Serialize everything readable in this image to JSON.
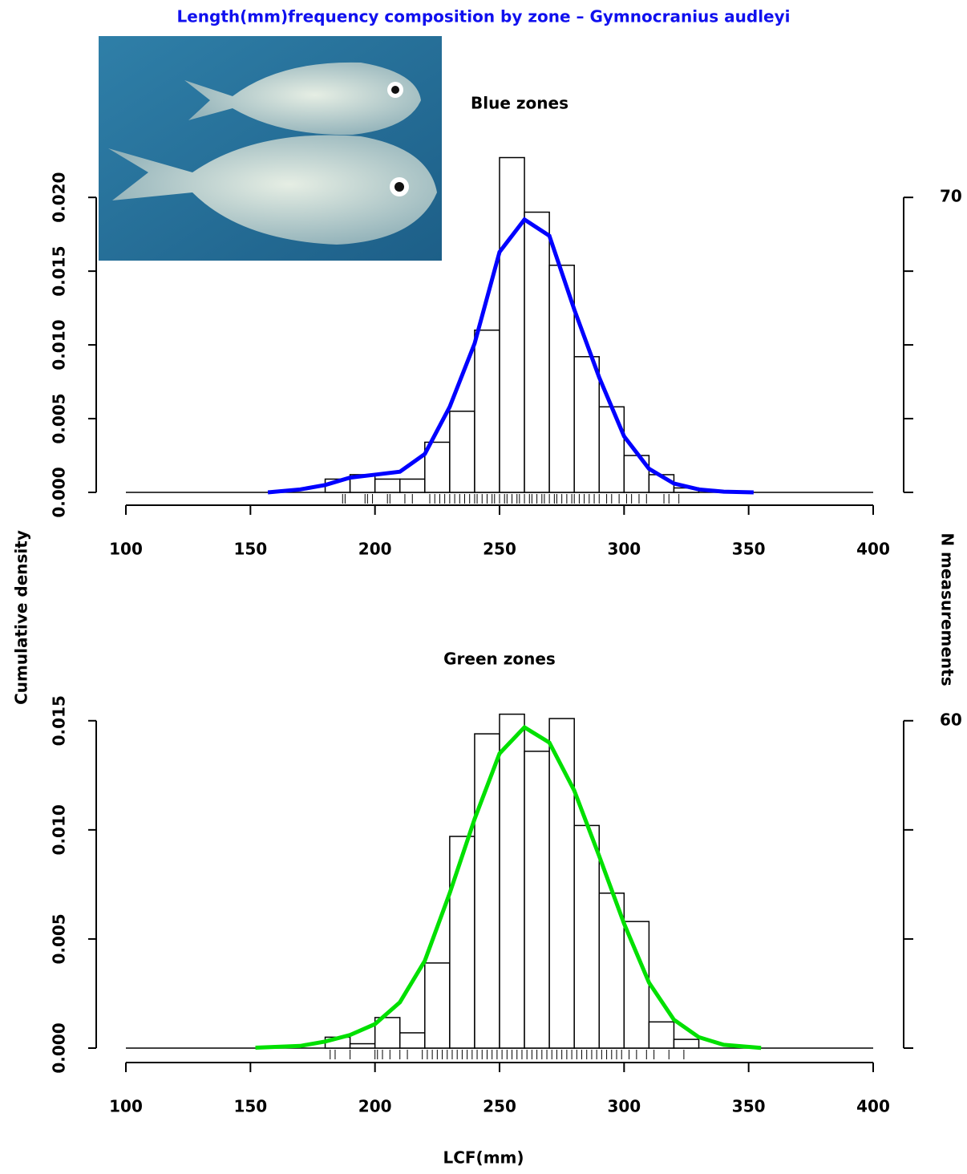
{
  "title": "Length(mm)frequency composition by zone – Gymnocranius audleyi",
  "ylabel": "Cumulative density",
  "y2label": "N measurements",
  "xlabel": "LCF(mm)",
  "chart_data": [
    {
      "type": "histogram",
      "title": "Blue zones",
      "bins": [
        180,
        190,
        200,
        210,
        220,
        230,
        240,
        250,
        260,
        270,
        280,
        290,
        300,
        310,
        320,
        330
      ],
      "values": [
        0.0009,
        0.0012,
        0.0009,
        0.0009,
        0.0034,
        0.0055,
        0.011,
        0.0227,
        0.019,
        0.0154,
        0.0092,
        0.0058,
        0.0025,
        0.0012,
        0.0003
      ],
      "bar_color": "#ffffff",
      "curve": {
        "color": "#0000ff",
        "x": [
          157,
          170,
          180,
          190,
          200,
          210,
          220,
          230,
          240,
          250,
          260,
          270,
          280,
          290,
          300,
          310,
          320,
          330,
          340,
          352
        ],
        "values": [
          0,
          0.0002,
          0.0005,
          0.001,
          0.0012,
          0.0014,
          0.0026,
          0.0058,
          0.0101,
          0.0163,
          0.0185,
          0.0174,
          0.0124,
          0.0078,
          0.0038,
          0.0016,
          0.0006,
          0.0002,
          5e-05,
          0
        ]
      },
      "rug": [
        187,
        188,
        196,
        197,
        199,
        205,
        206,
        212,
        215,
        222,
        224,
        226,
        228,
        230,
        232,
        234,
        236,
        238,
        240,
        241,
        243,
        245,
        247,
        248,
        250,
        252,
        253,
        255,
        257,
        258,
        260,
        262,
        263,
        265,
        267,
        268,
        270,
        272,
        273,
        275,
        277,
        279,
        280,
        282,
        284,
        286,
        288,
        290,
        293,
        295,
        298,
        301,
        303,
        306,
        309,
        316,
        318,
        322
      ],
      "xlim": [
        100,
        400
      ],
      "xticks": [
        100,
        150,
        200,
        250,
        300,
        350,
        400
      ],
      "ylim": [
        0,
        0.023
      ],
      "yticks": [
        {
          "value": 0,
          "label": "0.000"
        },
        {
          "value": 0.005,
          "label": "0.005"
        },
        {
          "value": 0.01,
          "label": "0.010"
        },
        {
          "value": 0.015,
          "label": "0.015"
        },
        {
          "value": 0.02,
          "label": "0.020"
        }
      ],
      "y2lim": [
        0,
        80.5
      ],
      "y2ticks": [
        70
      ]
    },
    {
      "type": "histogram",
      "title": "Green zones",
      "bins": [
        180,
        190,
        200,
        210,
        220,
        230,
        240,
        250,
        260,
        270,
        280,
        290,
        300,
        310,
        320,
        330
      ],
      "values": [
        0.0005,
        0.0002,
        0.0014,
        0.0007,
        0.0039,
        0.0097,
        0.0144,
        0.0153,
        0.0136,
        0.0151,
        0.0102,
        0.0071,
        0.0058,
        0.0012,
        0.0004
      ],
      "bar_color": "#ffffff",
      "curve": {
        "color": "#00e000",
        "x": [
          152,
          170,
          180,
          190,
          200,
          210,
          220,
          230,
          240,
          250,
          260,
          270,
          280,
          290,
          300,
          310,
          320,
          330,
          340,
          355
        ],
        "values": [
          2e-05,
          0.0001,
          0.0003,
          0.0006,
          0.0011,
          0.0021,
          0.004,
          0.0071,
          0.0105,
          0.0135,
          0.0147,
          0.014,
          0.0118,
          0.0088,
          0.0057,
          0.003,
          0.0013,
          0.0005,
          0.00015,
          1e-05
        ]
      },
      "rug": [
        182,
        184,
        190,
        200,
        201,
        203,
        206,
        210,
        213,
        219,
        221,
        223,
        225,
        227,
        229,
        231,
        233,
        235,
        237,
        239,
        241,
        243,
        245,
        247,
        249,
        251,
        253,
        255,
        257,
        259,
        261,
        263,
        265,
        267,
        269,
        271,
        273,
        275,
        277,
        279,
        281,
        283,
        285,
        287,
        289,
        291,
        293,
        295,
        297,
        299,
        302,
        305,
        309,
        312,
        318,
        324
      ],
      "xlim": [
        100,
        400
      ],
      "xticks": [
        100,
        150,
        200,
        250,
        300,
        350,
        400
      ],
      "ylim": [
        0,
        0.0158
      ],
      "yticks": [
        {
          "value": 0,
          "label": "0.000"
        },
        {
          "value": 0.005,
          "label": "0.005"
        },
        {
          "value": 0.01,
          "label": "0.010"
        },
        {
          "value": 0.015,
          "label": "0.015"
        }
      ],
      "y2lim": [
        0,
        63.2
      ],
      "y2ticks": [
        60
      ]
    }
  ]
}
